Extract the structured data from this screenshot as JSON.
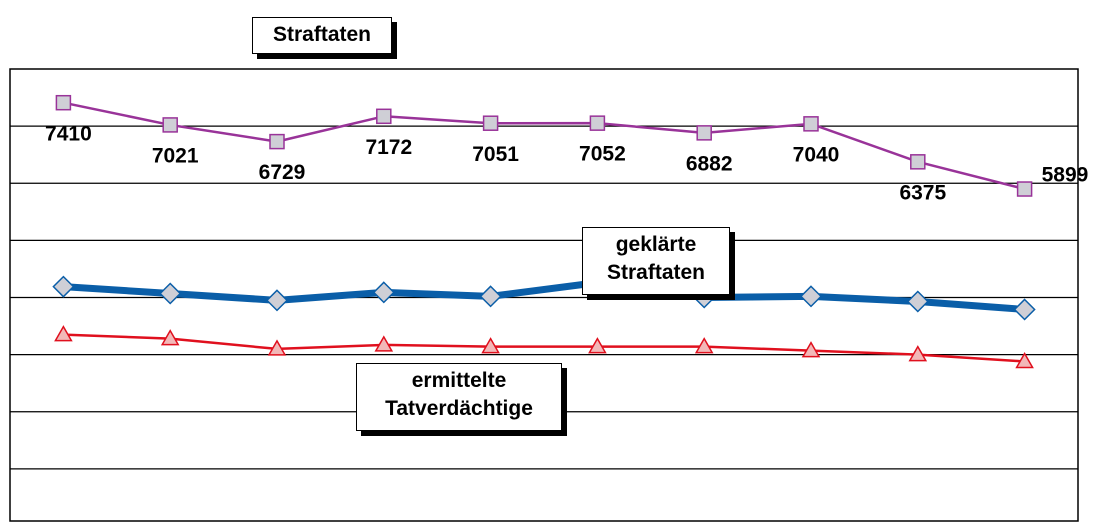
{
  "chart_data": {
    "type": "line",
    "categories": [
      null,
      null,
      null,
      null,
      null,
      null,
      null,
      null,
      null,
      null
    ],
    "series": [
      {
        "name": "Straftaten",
        "color": "#993399",
        "marker": "square",
        "marker_fill": "#cfcfd6",
        "line_width": 2.5,
        "data_labels": true,
        "values": [
          7410,
          7021,
          6729,
          7172,
          7051,
          7052,
          6882,
          7040,
          6375,
          5899
        ]
      },
      {
        "name": "geklärte Straftaten",
        "color": "#0a5ea8",
        "marker": "diamond",
        "marker_fill": "#cfcfd6",
        "line_width": 7,
        "data_labels": false,
        "values": [
          4190,
          4070,
          3950,
          4090,
          4020,
          4260,
          4000,
          4020,
          3930,
          3790
        ]
      },
      {
        "name": "ermittelte Tatverdächtige",
        "color": "#e0101e",
        "marker": "triangle",
        "marker_fill": "#f2b8b8",
        "line_width": 2.5,
        "data_labels": false,
        "values": [
          3350,
          3280,
          3100,
          3170,
          3140,
          3140,
          3140,
          3070,
          3000,
          2880
        ]
      }
    ],
    "ylim": [
      0,
      8000
    ],
    "yticks": [
      0,
      1000,
      2000,
      3000,
      4000,
      5000,
      6000,
      7000,
      8000
    ],
    "grid": true
  }
}
